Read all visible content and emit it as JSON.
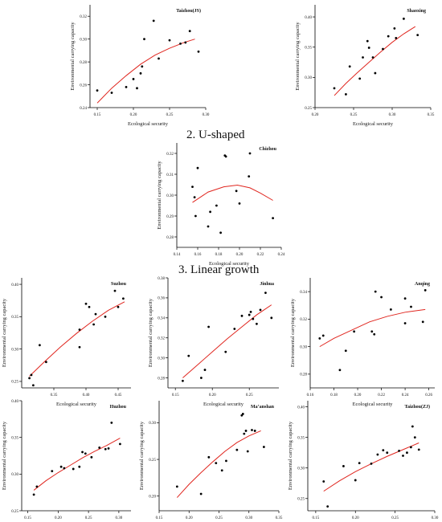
{
  "section_titles": [
    "2. U-shaped",
    "3. Linear growth"
  ],
  "styles": {
    "point_color": "#000000",
    "curve_color": "#e0261f",
    "axis_color": "#000000"
  },
  "chart_data": [
    {
      "type": "scatter",
      "title": "Taizhou(JS)",
      "xlabel": "Ecological security",
      "ylabel": "Environmental carrying capacity",
      "xlim": [
        0.14,
        0.3
      ],
      "ylim": [
        0.24,
        0.33
      ],
      "xticks": [
        "0.15",
        "0.20",
        "0.25",
        "0.30"
      ],
      "xtick_values": [
        0.15,
        0.2,
        0.25,
        0.3
      ],
      "yticks": [
        "0.24",
        "0.26",
        "0.28",
        "0.30",
        "0.32"
      ],
      "ytick_values": [
        0.24,
        0.26,
        0.28,
        0.3,
        0.32
      ],
      "points": [
        [
          0.15,
          0.255
        ],
        [
          0.17,
          0.253
        ],
        [
          0.19,
          0.258
        ],
        [
          0.2,
          0.265
        ],
        [
          0.205,
          0.257
        ],
        [
          0.21,
          0.27
        ],
        [
          0.212,
          0.276
        ],
        [
          0.215,
          0.3
        ],
        [
          0.228,
          0.316
        ],
        [
          0.235,
          0.283
        ],
        [
          0.25,
          0.299
        ],
        [
          0.265,
          0.296
        ],
        [
          0.272,
          0.297
        ],
        [
          0.278,
          0.307
        ],
        [
          0.29,
          0.289
        ]
      ],
      "fit": [
        [
          0.15,
          0.244
        ],
        [
          0.17,
          0.257
        ],
        [
          0.19,
          0.268
        ],
        [
          0.21,
          0.278
        ],
        [
          0.23,
          0.286
        ],
        [
          0.25,
          0.292
        ],
        [
          0.27,
          0.297
        ],
        [
          0.285,
          0.3
        ]
      ]
    },
    {
      "type": "scatter",
      "title": "Shaoxing",
      "xlabel": "Ecological security",
      "ylabel": "Environmental carrying capacity",
      "xlim": [
        0.2,
        0.35
      ],
      "ylim": [
        0.25,
        0.42
      ],
      "xticks": [
        "0.20",
        "0.25",
        "0.30",
        "0.35"
      ],
      "xtick_values": [
        0.2,
        0.25,
        0.3,
        0.35
      ],
      "yticks": [
        "0.25",
        "0.30",
        "0.35",
        "0.40"
      ],
      "ytick_values": [
        0.25,
        0.3,
        0.35,
        0.4
      ],
      "points": [
        [
          0.225,
          0.282
        ],
        [
          0.24,
          0.272
        ],
        [
          0.245,
          0.318
        ],
        [
          0.258,
          0.298
        ],
        [
          0.262,
          0.333
        ],
        [
          0.268,
          0.36
        ],
        [
          0.27,
          0.349
        ],
        [
          0.275,
          0.333
        ],
        [
          0.278,
          0.307
        ],
        [
          0.288,
          0.347
        ],
        [
          0.295,
          0.368
        ],
        [
          0.303,
          0.381
        ],
        [
          0.305,
          0.365
        ],
        [
          0.315,
          0.397
        ],
        [
          0.333,
          0.37
        ]
      ],
      "fit": [
        [
          0.225,
          0.27
        ],
        [
          0.24,
          0.29
        ],
        [
          0.255,
          0.308
        ],
        [
          0.27,
          0.325
        ],
        [
          0.285,
          0.342
        ],
        [
          0.3,
          0.358
        ],
        [
          0.315,
          0.372
        ],
        [
          0.33,
          0.384
        ]
      ]
    },
    {
      "type": "scatter",
      "title": "Chizhou",
      "xlabel": "Ecological security",
      "ylabel": "Environmental carrying capacity",
      "xlim": [
        0.14,
        0.24
      ],
      "ylim": [
        0.275,
        0.325
      ],
      "xticks": [
        "0.14",
        "0.16",
        "0.18",
        "0.20",
        "0.22",
        "0.24"
      ],
      "xtick_values": [
        0.14,
        0.16,
        0.18,
        0.2,
        0.22,
        0.24
      ],
      "yticks": [
        "0.28",
        "0.29",
        "0.30",
        "0.31",
        "0.32"
      ],
      "ytick_values": [
        0.28,
        0.29,
        0.3,
        0.31,
        0.32
      ],
      "points": [
        [
          0.155,
          0.304
        ],
        [
          0.157,
          0.299
        ],
        [
          0.158,
          0.29
        ],
        [
          0.16,
          0.313
        ],
        [
          0.17,
          0.285
        ],
        [
          0.172,
          0.292
        ],
        [
          0.178,
          0.295
        ],
        [
          0.182,
          0.282
        ],
        [
          0.186,
          0.319
        ],
        [
          0.187,
          0.3185
        ],
        [
          0.197,
          0.302
        ],
        [
          0.2,
          0.296
        ],
        [
          0.209,
          0.309
        ],
        [
          0.21,
          0.32
        ],
        [
          0.232,
          0.289
        ]
      ],
      "fit": [
        [
          0.155,
          0.2965
        ],
        [
          0.17,
          0.3015
        ],
        [
          0.185,
          0.304
        ],
        [
          0.198,
          0.3048
        ],
        [
          0.21,
          0.3035
        ],
        [
          0.22,
          0.301
        ],
        [
          0.232,
          0.2975
        ]
      ]
    },
    {
      "type": "scatter",
      "title": "Suzhou",
      "xlabel": "Ecological security",
      "ylabel": "Environmental carrying capacity",
      "xlim": [
        0.3,
        0.47
      ],
      "ylim": [
        0.24,
        0.41
      ],
      "xticks": [
        "0.35",
        "0.40",
        "0.45"
      ],
      "xtick_values": [
        0.35,
        0.4,
        0.45
      ],
      "yticks": [
        "0.25",
        "0.30",
        "0.35",
        "0.40"
      ],
      "ytick_values": [
        0.25,
        0.3,
        0.35,
        0.4
      ],
      "points": [
        [
          0.312,
          0.255
        ],
        [
          0.315,
          0.26
        ],
        [
          0.318,
          0.244
        ],
        [
          0.328,
          0.306
        ],
        [
          0.338,
          0.28
        ],
        [
          0.39,
          0.303
        ],
        [
          0.39,
          0.33
        ],
        [
          0.4,
          0.37
        ],
        [
          0.405,
          0.365
        ],
        [
          0.412,
          0.338
        ],
        [
          0.415,
          0.354
        ],
        [
          0.43,
          0.35
        ],
        [
          0.445,
          0.39
        ],
        [
          0.45,
          0.365
        ],
        [
          0.458,
          0.378
        ]
      ],
      "fit": [
        [
          0.312,
          0.258
        ],
        [
          0.335,
          0.28
        ],
        [
          0.36,
          0.303
        ],
        [
          0.385,
          0.324
        ],
        [
          0.41,
          0.343
        ],
        [
          0.435,
          0.36
        ],
        [
          0.46,
          0.373
        ]
      ]
    },
    {
      "type": "scatter",
      "title": "Jinhua",
      "xlabel": "Ecological security",
      "ylabel": "Environmental carrying capacity",
      "xlim": [
        0.14,
        0.29
      ],
      "ylim": [
        0.27,
        0.38
      ],
      "xticks": [
        "0.15",
        "0.20",
        "0.25"
      ],
      "xtick_values": [
        0.15,
        0.2,
        0.25
      ],
      "yticks": [
        "0.28",
        "0.30",
        "0.32",
        "0.34",
        "0.36",
        "0.38"
      ],
      "ytick_values": [
        0.28,
        0.3,
        0.32,
        0.34,
        0.36,
        0.38
      ],
      "points": [
        [
          0.16,
          0.277
        ],
        [
          0.168,
          0.302
        ],
        [
          0.185,
          0.28
        ],
        [
          0.19,
          0.288
        ],
        [
          0.195,
          0.331
        ],
        [
          0.218,
          0.306
        ],
        [
          0.23,
          0.329
        ],
        [
          0.24,
          0.342
        ],
        [
          0.25,
          0.343
        ],
        [
          0.252,
          0.346
        ],
        [
          0.255,
          0.339
        ],
        [
          0.26,
          0.334
        ],
        [
          0.265,
          0.348
        ],
        [
          0.272,
          0.365
        ],
        [
          0.28,
          0.34
        ]
      ],
      "fit": [
        [
          0.16,
          0.28
        ],
        [
          0.18,
          0.293
        ],
        [
          0.2,
          0.306
        ],
        [
          0.22,
          0.319
        ],
        [
          0.24,
          0.331
        ],
        [
          0.26,
          0.343
        ],
        [
          0.28,
          0.353
        ]
      ]
    },
    {
      "type": "scatter",
      "title": "Anqing",
      "xlabel": "Ecological security",
      "ylabel": "Environmental carrying capacity",
      "xlim": [
        0.16,
        0.265
      ],
      "ylim": [
        0.27,
        0.35
      ],
      "xticks": [
        "0.16",
        "0.18",
        "0.20",
        "0.22",
        "0.24",
        "0.26"
      ],
      "xtick_values": [
        0.16,
        0.18,
        0.2,
        0.22,
        0.24,
        0.26
      ],
      "yticks": [
        "0.28",
        "0.30",
        "0.32",
        "0.34"
      ],
      "ytick_values": [
        0.28,
        0.3,
        0.32,
        0.34
      ],
      "points": [
        [
          0.168,
          0.306
        ],
        [
          0.171,
          0.308
        ],
        [
          0.185,
          0.283
        ],
        [
          0.19,
          0.297
        ],
        [
          0.197,
          0.311
        ],
        [
          0.212,
          0.311
        ],
        [
          0.214,
          0.309
        ],
        [
          0.215,
          0.34
        ],
        [
          0.22,
          0.336
        ],
        [
          0.228,
          0.327
        ],
        [
          0.24,
          0.335
        ],
        [
          0.24,
          0.317
        ],
        [
          0.245,
          0.329
        ],
        [
          0.255,
          0.318
        ],
        [
          0.257,
          0.341
        ]
      ],
      "fit": [
        [
          0.168,
          0.3
        ],
        [
          0.18,
          0.306
        ],
        [
          0.195,
          0.312
        ],
        [
          0.21,
          0.318
        ],
        [
          0.225,
          0.322
        ],
        [
          0.24,
          0.325
        ],
        [
          0.257,
          0.327
        ]
      ]
    },
    {
      "type": "scatter",
      "title": "Huzhou",
      "xlabel": "Ecological security",
      "ylabel": "Environmental carrying capacity",
      "xlim": [
        0.14,
        0.32
      ],
      "ylim": [
        0.25,
        0.4
      ],
      "xticks": [
        "0.15",
        "0.20",
        "0.25",
        "0.30"
      ],
      "xtick_values": [
        0.15,
        0.2,
        0.25,
        0.3
      ],
      "yticks": [
        "0.25",
        "0.30",
        "0.35",
        "0.40"
      ],
      "ytick_values": [
        0.25,
        0.3,
        0.35,
        0.4
      ],
      "points": [
        [
          0.16,
          0.272
        ],
        [
          0.165,
          0.283
        ],
        [
          0.19,
          0.304
        ],
        [
          0.205,
          0.31
        ],
        [
          0.21,
          0.308
        ],
        [
          0.225,
          0.307
        ],
        [
          0.235,
          0.31
        ],
        [
          0.24,
          0.33
        ],
        [
          0.245,
          0.328
        ],
        [
          0.255,
          0.323
        ],
        [
          0.268,
          0.336
        ],
        [
          0.278,
          0.334
        ],
        [
          0.283,
          0.335
        ],
        [
          0.288,
          0.37
        ],
        [
          0.302,
          0.341
        ]
      ],
      "fit": [
        [
          0.16,
          0.278
        ],
        [
          0.18,
          0.291
        ],
        [
          0.2,
          0.302
        ],
        [
          0.22,
          0.312
        ],
        [
          0.24,
          0.322
        ],
        [
          0.26,
          0.331
        ],
        [
          0.28,
          0.339
        ],
        [
          0.302,
          0.349
        ]
      ]
    },
    {
      "type": "scatter",
      "title": "Ma’anshan",
      "xlabel": "Ecological security",
      "ylabel": "Environmental carrying capacity",
      "xlim": [
        0.15,
        0.35
      ],
      "ylim": [
        0.18,
        0.33
      ],
      "xticks": [
        "0.15",
        "0.20",
        "0.25",
        "0.30",
        "0.35"
      ],
      "xtick_values": [
        0.15,
        0.2,
        0.25,
        0.3,
        0.35
      ],
      "yticks": [
        "0.20",
        "0.25",
        "0.30"
      ],
      "ytick_values": [
        0.2,
        0.25,
        0.3
      ],
      "points": [
        [
          0.18,
          0.213
        ],
        [
          0.22,
          0.203
        ],
        [
          0.233,
          0.253
        ],
        [
          0.245,
          0.245
        ],
        [
          0.255,
          0.235
        ],
        [
          0.262,
          0.248
        ],
        [
          0.28,
          0.263
        ],
        [
          0.288,
          0.31
        ],
        [
          0.29,
          0.312
        ],
        [
          0.292,
          0.285
        ],
        [
          0.295,
          0.289
        ],
        [
          0.298,
          0.261
        ],
        [
          0.305,
          0.29
        ],
        [
          0.31,
          0.289
        ],
        [
          0.325,
          0.267
        ]
      ],
      "fit": [
        [
          0.18,
          0.198
        ],
        [
          0.2,
          0.216
        ],
        [
          0.22,
          0.232
        ],
        [
          0.24,
          0.247
        ],
        [
          0.26,
          0.261
        ],
        [
          0.28,
          0.273
        ],
        [
          0.3,
          0.282
        ],
        [
          0.32,
          0.289
        ]
      ]
    },
    {
      "type": "scatter",
      "title": "Taizhou(ZJ)",
      "xlabel": "Ecological security",
      "ylabel": "Environmental carrying capacity",
      "xlim": [
        0.14,
        0.3
      ],
      "ylim": [
        0.23,
        0.41
      ],
      "xticks": [
        "0.15",
        "0.20",
        "0.25",
        "0.30"
      ],
      "xtick_values": [
        0.15,
        0.2,
        0.25,
        0.3
      ],
      "yticks": [
        "0.25",
        "0.30",
        "0.35",
        "0.40"
      ],
      "ytick_values": [
        0.25,
        0.3,
        0.35,
        0.4
      ],
      "points": [
        [
          0.16,
          0.278
        ],
        [
          0.165,
          0.237
        ],
        [
          0.185,
          0.303
        ],
        [
          0.2,
          0.28
        ],
        [
          0.205,
          0.308
        ],
        [
          0.22,
          0.307
        ],
        [
          0.228,
          0.322
        ],
        [
          0.235,
          0.329
        ],
        [
          0.24,
          0.325
        ],
        [
          0.255,
          0.328
        ],
        [
          0.26,
          0.32
        ],
        [
          0.265,
          0.325
        ],
        [
          0.27,
          0.334
        ],
        [
          0.272,
          0.368
        ],
        [
          0.275,
          0.35
        ],
        [
          0.28,
          0.33
        ]
      ],
      "fit": [
        [
          0.16,
          0.262
        ],
        [
          0.18,
          0.279
        ],
        [
          0.2,
          0.294
        ],
        [
          0.22,
          0.307
        ],
        [
          0.24,
          0.319
        ],
        [
          0.26,
          0.33
        ],
        [
          0.28,
          0.341
        ]
      ]
    }
  ]
}
